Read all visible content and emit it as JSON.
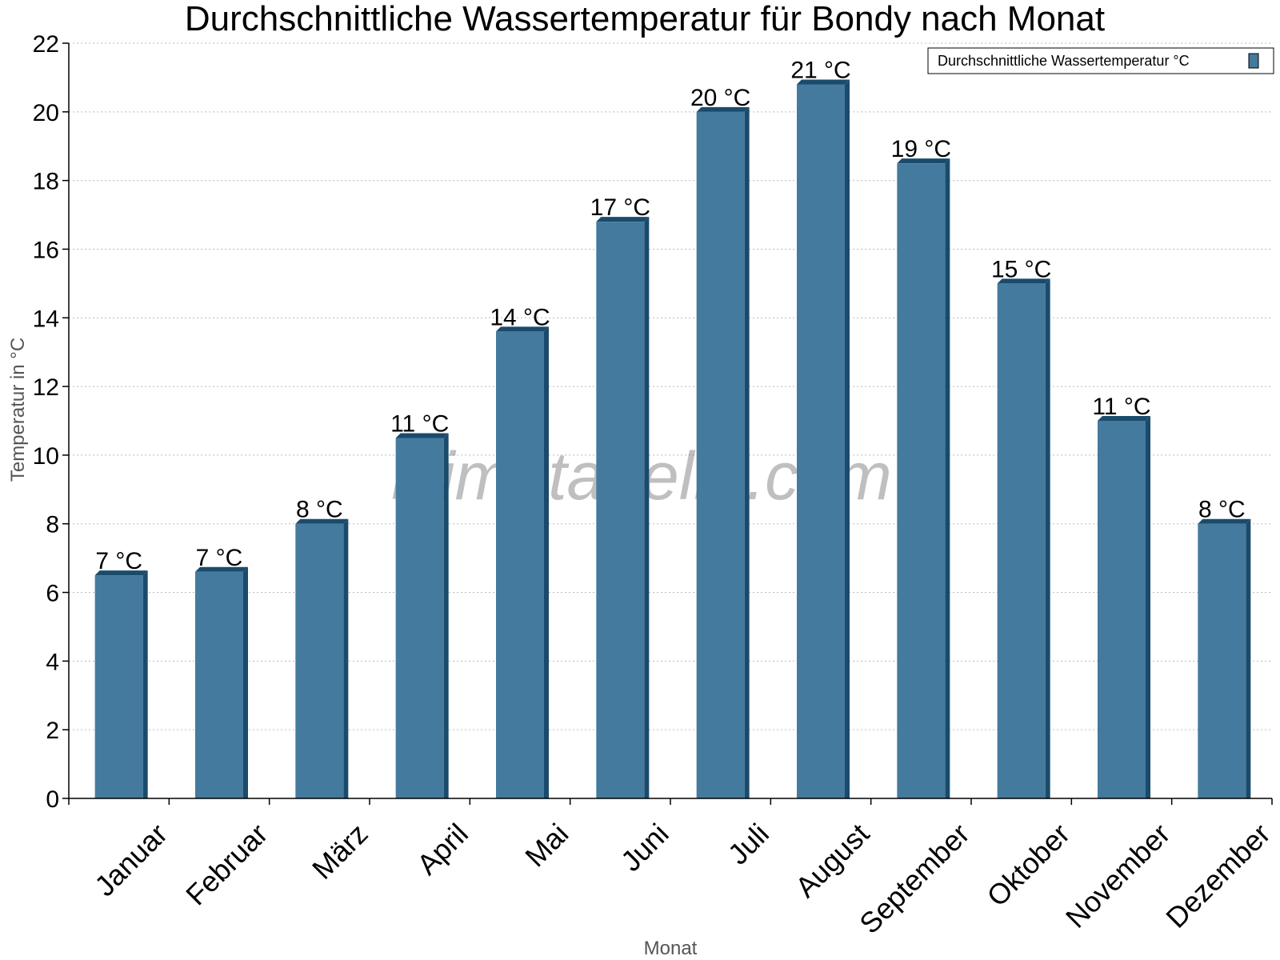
{
  "chart_data": {
    "type": "bar",
    "title": "Durchschnittliche Wassertemperatur für Bondy nach Monat",
    "xlabel": "Monat",
    "ylabel": "Temperatur in °C",
    "categories": [
      "Januar",
      "Februar",
      "März",
      "April",
      "Mai",
      "Juni",
      "Juli",
      "August",
      "September",
      "Oktober",
      "November",
      "Dezember"
    ],
    "series": [
      {
        "name": "Durchschnittliche Wassertemperatur °C",
        "values": [
          6.5,
          6.6,
          8.0,
          10.5,
          13.6,
          16.8,
          20.0,
          20.8,
          18.5,
          15.0,
          11.0,
          8.0
        ],
        "labels": [
          "7 °C",
          "7 °C",
          "8 °C",
          "11 °C",
          "14 °C",
          "17 °C",
          "20 °C",
          "21 °C",
          "19 °C",
          "15 °C",
          "11 °C",
          "8 °C"
        ]
      }
    ],
    "ylim": [
      0,
      22
    ],
    "yticks": [
      0,
      2,
      4,
      6,
      8,
      10,
      12,
      14,
      16,
      18,
      20,
      22
    ],
    "grid": true,
    "legend_position": "top-right"
  },
  "watermark": "klimatabelle.com",
  "colors": {
    "bar": "#447a9d",
    "bar_shade": "#1b4b6c",
    "grid": "#bbbbbb",
    "axis": "#000000"
  }
}
